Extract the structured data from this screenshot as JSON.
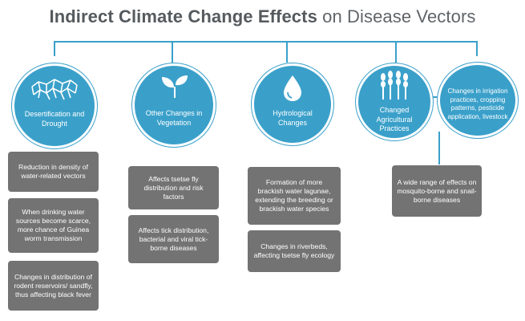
{
  "title": {
    "bold": "Indirect Climate Change Effects",
    "light": "on Disease Vectors"
  },
  "colors": {
    "accent": "#3aa0ca",
    "box": "#737373",
    "title": "#555a5e"
  },
  "categories": [
    {
      "icon": "cracked-earth-icon",
      "label": "Desertification and Drought",
      "effects": [
        "Reduction in density of water-related vectors",
        "When drinking water sources become scarce, more chance of Guinea worm transmission",
        "Changes in distribution of rodent reservoirs/ sandfly, thus affecting black fever"
      ]
    },
    {
      "icon": "sprout-icon",
      "label": "Other Changes in Vegetation",
      "effects": [
        "Affects tsetse fly distribution and risk factors",
        "Affects tick distribution, bacterial and viral tick-borne diseases"
      ]
    },
    {
      "icon": "water-drop-icon",
      "label": "Hydrological Changes",
      "effects": [
        "Formation of more brackish water lagunae, extending the breeding or brackish water species",
        "Changes in riverbeds, affecting tsetse fly ecology"
      ]
    },
    {
      "icon": "wheat-icon",
      "label": "Changed Agricultural Practices",
      "detail": "Changes in irrigation practices, cropping patterns, pesticide application, livestock",
      "effects": [
        "A wide range of effects on mosquito-borne and snail-borne diseases"
      ]
    }
  ]
}
